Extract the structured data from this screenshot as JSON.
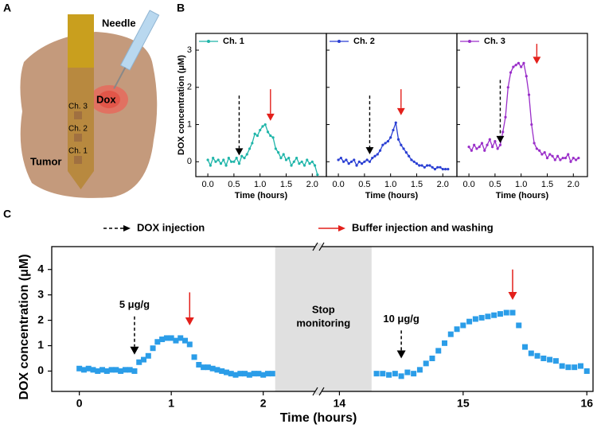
{
  "panel_labels": [
    "A",
    "B",
    "C"
  ],
  "panel_a": {
    "needle": "Needle",
    "dox": "Dox",
    "channels": [
      "Ch. 3",
      "Ch. 2",
      "Ch. 1"
    ],
    "tumor": "Tumor"
  },
  "chart_data": [
    {
      "type": "line",
      "ylabel": "DOX concentration (μM)",
      "xlabel": "Time (hours)",
      "xlim": [
        -0.23,
        2.27
      ],
      "ylim": [
        -0.4,
        3.45
      ],
      "xticks": [
        {
          "value": 0,
          "label": "0.0"
        },
        0.5,
        {
          "value": 1,
          "label": "1.0"
        },
        1.5,
        {
          "value": 2,
          "label": "2.0"
        }
      ],
      "yticks": [
        0,
        1,
        2,
        3
      ],
      "legend": "upper left",
      "series": [
        {
          "name": "Ch. 1",
          "color": "#1fb5a9",
          "x": [
            0,
            0.05,
            0.1,
            0.15,
            0.2,
            0.25,
            0.3,
            0.35,
            0.4,
            0.45,
            0.5,
            0.55,
            0.6,
            0.65,
            0.7,
            0.75,
            0.8,
            0.85,
            0.9,
            0.95,
            1,
            1.05,
            1.1,
            1.15,
            1.2,
            1.25,
            1.3,
            1.35,
            1.4,
            1.45,
            1.5,
            1.55,
            1.6,
            1.65,
            1.7,
            1.75,
            1.8,
            1.85,
            1.9,
            1.95,
            2,
            2.05,
            2.1
          ],
          "values": [
            0.05,
            -0.1,
            0.1,
            0,
            0.05,
            -0.05,
            0.05,
            -0.1,
            0.1,
            0,
            0,
            0.1,
            -0.05,
            0.15,
            0.1,
            0.2,
            0.35,
            0.5,
            0.75,
            0.7,
            0.85,
            0.95,
            1.0,
            0.8,
            0.7,
            0.65,
            0.35,
            0.25,
            0.1,
            0.2,
            0.05,
            0.1,
            -0.1,
            0,
            0.1,
            -0.05,
            0,
            -0.1,
            0.05,
            -0.05,
            0,
            -0.1,
            -0.35
          ]
        }
      ],
      "arrows": [
        {
          "x": 0.6,
          "y_from": 1.78,
          "y_to": 0.17,
          "dashed": true,
          "color": "#000000"
        },
        {
          "x": 1.2,
          "y_from": 1.95,
          "y_to": 1.1,
          "dashed": false,
          "color": "#e3201b"
        }
      ]
    },
    {
      "type": "line",
      "xlabel": "Time (hours)",
      "xlim": [
        -0.23,
        2.27
      ],
      "ylim": [
        -0.4,
        3.45
      ],
      "xticks": [
        {
          "value": 0,
          "label": "0.0"
        },
        0.5,
        {
          "value": 1,
          "label": "1.0"
        },
        1.5,
        {
          "value": 2,
          "label": "2.0"
        }
      ],
      "yticks": [
        0,
        1,
        2,
        3
      ],
      "legend": "upper left",
      "series": [
        {
          "name": "Ch. 2",
          "color": "#2a3fd3",
          "x": [
            0,
            0.05,
            0.1,
            0.15,
            0.2,
            0.25,
            0.3,
            0.35,
            0.4,
            0.45,
            0.5,
            0.55,
            0.6,
            0.65,
            0.7,
            0.75,
            0.8,
            0.85,
            0.9,
            0.95,
            1,
            1.05,
            1.1,
            1.15,
            1.2,
            1.25,
            1.3,
            1.35,
            1.4,
            1.45,
            1.5,
            1.55,
            1.6,
            1.65,
            1.7,
            1.75,
            1.8,
            1.85,
            1.9,
            1.95,
            2,
            2.05,
            2.1
          ],
          "values": [
            0.05,
            0.1,
            0,
            0.05,
            -0.05,
            0,
            0.05,
            -0.1,
            0,
            -0.05,
            0,
            0.05,
            0,
            0.1,
            0.15,
            0.2,
            0.3,
            0.45,
            0.5,
            0.55,
            0.65,
            0.85,
            1.05,
            0.6,
            0.45,
            0.35,
            0.25,
            0.15,
            0.05,
            0,
            -0.05,
            -0.1,
            -0.1,
            -0.15,
            -0.1,
            -0.1,
            -0.15,
            -0.2,
            -0.15,
            -0.15,
            -0.2,
            -0.2,
            -0.2
          ]
        }
      ],
      "arrows": [
        {
          "x": 0.6,
          "y_from": 1.78,
          "y_to": 0.2,
          "dashed": true,
          "color": "#000000"
        },
        {
          "x": 1.2,
          "y_from": 1.95,
          "y_to": 1.25,
          "dashed": false,
          "color": "#e3201b"
        }
      ]
    },
    {
      "type": "line",
      "xlabel": "Time (hours)",
      "xlim": [
        -0.23,
        2.27
      ],
      "ylim": [
        -0.4,
        3.45
      ],
      "xticks": [
        {
          "value": 0,
          "label": "0.0"
        },
        0.5,
        {
          "value": 1,
          "label": "1.0"
        },
        1.5,
        {
          "value": 2,
          "label": "2.0"
        }
      ],
      "yticks": [
        0,
        1,
        2,
        3
      ],
      "legend": "upper left",
      "series": [
        {
          "name": "Ch. 3",
          "color": "#9a2ec9",
          "x": [
            0,
            0.05,
            0.1,
            0.15,
            0.2,
            0.25,
            0.3,
            0.35,
            0.4,
            0.45,
            0.5,
            0.55,
            0.6,
            0.65,
            0.7,
            0.75,
            0.8,
            0.85,
            0.9,
            0.95,
            1,
            1.05,
            1.1,
            1.15,
            1.2,
            1.25,
            1.3,
            1.35,
            1.4,
            1.45,
            1.5,
            1.55,
            1.6,
            1.65,
            1.7,
            1.75,
            1.8,
            1.85,
            1.9,
            1.95,
            2,
            2.05,
            2.1
          ],
          "values": [
            0.4,
            0.3,
            0.45,
            0.35,
            0.4,
            0.5,
            0.3,
            0.45,
            0.6,
            0.4,
            0.55,
            0.35,
            0.45,
            0.8,
            1.2,
            2.0,
            2.4,
            2.55,
            2.6,
            2.65,
            2.55,
            2.65,
            2.3,
            1.8,
            1.0,
            0.5,
            0.35,
            0.3,
            0.2,
            0.25,
            0.1,
            0.2,
            0.15,
            0.05,
            0.15,
            0.05,
            0.1,
            0.1,
            0.2,
            0,
            0.1,
            0.05,
            0.1
          ]
        }
      ],
      "arrows": [
        {
          "x": 0.6,
          "y_from": 2.2,
          "y_to": 0.5,
          "dashed": true,
          "color": "#000000"
        },
        {
          "x": 1.3,
          "y_from": 3.17,
          "y_to": 2.63,
          "dashed": false,
          "color": "#e3201b"
        }
      ]
    },
    {
      "type": "scatter",
      "ylabel": "DOX concentration (μM)",
      "xlabel": "Time (hours)",
      "xlim": [
        -0.3,
        16.05
      ],
      "x_break": [
        2.6,
        13.83
      ],
      "ylim": [
        -0.8,
        4.9
      ],
      "xticks": [
        0,
        1,
        2,
        14,
        15,
        16
      ],
      "yticks": [
        0,
        1,
        2,
        3,
        4
      ],
      "shade": [
        2.13,
        14.26
      ],
      "shade_label": [
        "Stop",
        "monitoring"
      ],
      "legend": [
        {
          "label": "DOX injection",
          "color": "#000000",
          "dashed": true
        },
        {
          "label": "Buffer injection and washing",
          "color": "#e3201b",
          "dashed": false
        }
      ],
      "series": [
        {
          "color": "#2b9de8",
          "x": [
            0,
            0.05,
            0.1,
            0.15,
            0.2,
            0.25,
            0.3,
            0.35,
            0.4,
            0.45,
            0.5,
            0.55,
            0.6,
            0.65,
            0.7,
            0.75,
            0.8,
            0.85,
            0.9,
            0.95,
            1,
            1.05,
            1.1,
            1.15,
            1.2,
            1.25,
            1.3,
            1.35,
            1.4,
            1.45,
            1.5,
            1.55,
            1.6,
            1.65,
            1.7,
            1.75,
            1.8,
            1.85,
            1.9,
            1.95,
            2,
            2.05,
            2.1,
            14.3,
            14.35,
            14.4,
            14.45,
            14.5,
            14.55,
            14.6,
            14.65,
            14.7,
            14.75,
            14.8,
            14.85,
            14.9,
            14.95,
            15,
            15.05,
            15.1,
            15.15,
            15.2,
            15.25,
            15.3,
            15.35,
            15.4,
            15.45,
            15.5,
            15.55,
            15.6,
            15.65,
            15.7,
            15.75,
            15.8,
            15.85,
            15.9,
            15.95,
            16
          ],
          "values": [
            0.1,
            0.05,
            0.1,
            0.05,
            0,
            0.05,
            0,
            0.05,
            0.05,
            0,
            0.05,
            0.05,
            0,
            0.35,
            0.45,
            0.6,
            0.9,
            1.15,
            1.25,
            1.3,
            1.3,
            1.2,
            1.3,
            1.2,
            1.05,
            0.55,
            0.25,
            0.15,
            0.15,
            0.1,
            0.05,
            0,
            -0.05,
            -0.1,
            -0.15,
            -0.1,
            -0.1,
            -0.15,
            -0.1,
            -0.1,
            -0.15,
            -0.1,
            -0.1,
            -0.1,
            -0.1,
            -0.15,
            -0.1,
            -0.2,
            -0.05,
            -0.1,
            0.05,
            0.3,
            0.5,
            0.8,
            1.1,
            1.45,
            1.65,
            1.8,
            1.95,
            2.05,
            2.1,
            2.15,
            2.2,
            2.25,
            2.3,
            2.3,
            1.8,
            0.95,
            0.7,
            0.6,
            0.5,
            0.45,
            0.4,
            0.2,
            0.15,
            0.15,
            0.2,
            0
          ]
        }
      ],
      "arrows": [
        {
          "x": 0.6,
          "y_from": 2.15,
          "y_to": 0.65,
          "dashed": true,
          "color": "#000000",
          "label": "5 μg/g"
        },
        {
          "x": 1.2,
          "y_from": 3.1,
          "y_to": 1.8,
          "dashed": false,
          "color": "#e3201b"
        },
        {
          "x": 14.5,
          "y_from": 1.6,
          "y_to": 0.5,
          "dashed": true,
          "color": "#000000",
          "label": "10 μg/g"
        },
        {
          "x": 15.4,
          "y_from": 4.0,
          "y_to": 2.8,
          "dashed": false,
          "color": "#e3201b"
        }
      ]
    }
  ]
}
